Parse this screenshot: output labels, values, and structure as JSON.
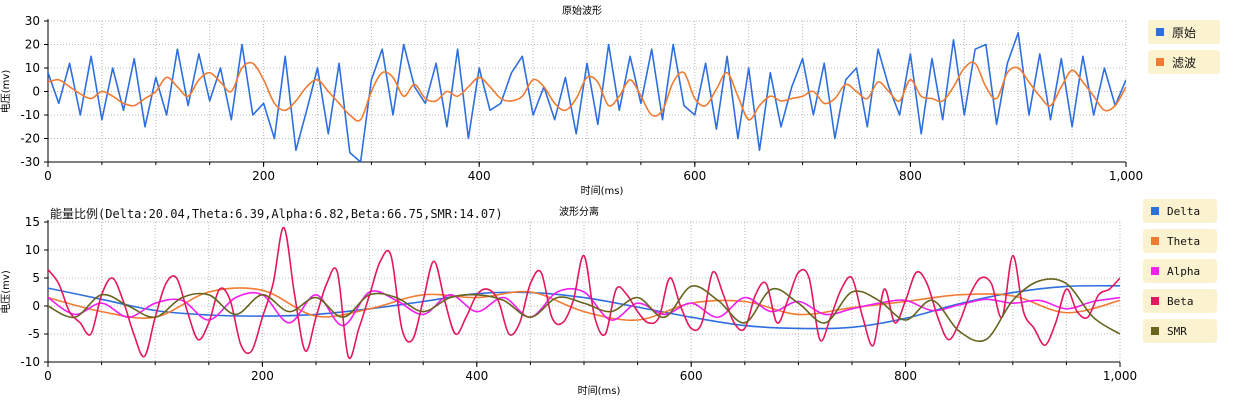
{
  "colors": {
    "blue": "#2e6fe0",
    "orange": "#f07c33",
    "magenta": "#f21ef0",
    "crimson": "#e4175f",
    "olive": "#66641e"
  },
  "energy_text": "能量比例(Delta:20.04,Theta:6.39,Alpha:6.82,Beta:66.75,SMR:14.07)",
  "chart_data": [
    {
      "type": "line",
      "title": "原始波形",
      "xlabel": "时间(ms)",
      "ylabel": "电压(mv)",
      "xlim": [
        0,
        1000
      ],
      "ylim": [
        -30,
        30
      ],
      "x_ticks": [
        "0",
        "200",
        "400",
        "600",
        "800",
        "1,000"
      ],
      "y_ticks": [
        "30",
        "20",
        "10",
        "0",
        "-10",
        "-20",
        "-30"
      ],
      "grid": true,
      "legend": "right",
      "series": [
        {
          "name": "原始",
          "color": "blue",
          "x": [
            0,
            10,
            20,
            30,
            40,
            50,
            60,
            70,
            80,
            90,
            100,
            110,
            120,
            130,
            140,
            150,
            160,
            170,
            180,
            190,
            200,
            210,
            220,
            230,
            240,
            250,
            260,
            270,
            280,
            290,
            300,
            310,
            320,
            330,
            340,
            350,
            360,
            370,
            380,
            390,
            400,
            410,
            420,
            430,
            440,
            450,
            460,
            470,
            480,
            490,
            500,
            510,
            520,
            530,
            540,
            550,
            560,
            570,
            580,
            590,
            600,
            610,
            620,
            630,
            640,
            650,
            660,
            670,
            680,
            690,
            700,
            710,
            720,
            730,
            740,
            750,
            760,
            770,
            780,
            790,
            800,
            810,
            820,
            830,
            840,
            850,
            860,
            870,
            880,
            890,
            900,
            910,
            920,
            930,
            940,
            950,
            960,
            970,
            980,
            990,
            1000
          ],
          "values": [
            8,
            -5,
            12,
            -10,
            15,
            -12,
            10,
            -8,
            14,
            -15,
            6,
            -10,
            18,
            -6,
            16,
            -4,
            10,
            -12,
            20,
            -10,
            -5,
            -20,
            15,
            -25,
            -8,
            10,
            -18,
            12,
            -26,
            -30,
            5,
            18,
            -10,
            20,
            2,
            -5,
            12,
            -15,
            18,
            -20,
            10,
            -8,
            -5,
            8,
            15,
            -10,
            2,
            -12,
            6,
            -18,
            12,
            -14,
            20,
            -8,
            15,
            -5,
            18,
            -12,
            20,
            -6,
            -10,
            12,
            -16,
            15,
            -20,
            10,
            -25,
            8,
            -15,
            2,
            14,
            -10,
            12,
            -20,
            5,
            10,
            -15,
            18,
            2,
            -10,
            16,
            -18,
            14,
            -12,
            22,
            -10,
            18,
            20,
            -14,
            12,
            25,
            -10,
            16,
            -12,
            14,
            -15,
            15,
            -10,
            10,
            -6,
            5
          ]
        },
        {
          "name": "滤波",
          "color": "orange",
          "x": [
            0,
            10,
            20,
            30,
            40,
            50,
            60,
            70,
            80,
            90,
            100,
            110,
            120,
            130,
            140,
            150,
            160,
            170,
            180,
            190,
            200,
            210,
            220,
            230,
            240,
            250,
            260,
            270,
            280,
            290,
            300,
            310,
            320,
            330,
            340,
            350,
            360,
            370,
            380,
            390,
            400,
            410,
            420,
            430,
            440,
            450,
            460,
            470,
            480,
            490,
            500,
            510,
            520,
            530,
            540,
            550,
            560,
            570,
            580,
            590,
            600,
            610,
            620,
            630,
            640,
            650,
            660,
            670,
            680,
            690,
            700,
            710,
            720,
            730,
            740,
            750,
            760,
            770,
            780,
            790,
            800,
            810,
            820,
            830,
            840,
            850,
            860,
            870,
            880,
            890,
            900,
            910,
            920,
            930,
            940,
            950,
            960,
            970,
            980,
            990,
            1000
          ],
          "values": [
            4,
            5,
            2,
            -1,
            -3,
            0,
            -2,
            -5,
            -6,
            -3,
            0,
            6,
            2,
            -2,
            5,
            8,
            4,
            0,
            10,
            12,
            5,
            -5,
            -8,
            -4,
            2,
            5,
            0,
            -5,
            -10,
            -12,
            0,
            8,
            6,
            -2,
            3,
            -3,
            -4,
            0,
            -2,
            2,
            6,
            2,
            -3,
            -4,
            -2,
            5,
            2,
            -5,
            -8,
            -3,
            6,
            4,
            -6,
            -2,
            5,
            -2,
            -10,
            -8,
            4,
            8,
            -3,
            -6,
            1,
            8,
            -2,
            -12,
            -6,
            -2,
            -4,
            -3,
            -2,
            0,
            -5,
            -3,
            3,
            0,
            -3,
            4,
            0,
            -4,
            5,
            -2,
            -3,
            -4,
            2,
            10,
            12,
            2,
            -3,
            8,
            10,
            4,
            -2,
            -6,
            2,
            9,
            4,
            -2,
            -8,
            -6,
            2
          ]
        }
      ]
    },
    {
      "type": "line",
      "title": "波形分离",
      "xlabel": "时间(ms)",
      "ylabel": "电压(mv)",
      "xlim": [
        0,
        1000
      ],
      "ylim": [
        -10,
        15
      ],
      "x_ticks": [
        "0",
        "200",
        "400",
        "600",
        "800",
        "1,000"
      ],
      "y_ticks": [
        "15",
        "10",
        "5",
        "0",
        "-5",
        "-10"
      ],
      "grid": true,
      "legend": "right",
      "series": [
        {
          "name": "Delta",
          "color": "blue",
          "x": [
            0,
            50,
            100,
            150,
            200,
            250,
            300,
            350,
            400,
            450,
            500,
            550,
            600,
            650,
            700,
            750,
            800,
            850,
            900,
            950,
            1000
          ],
          "values": [
            3.2,
            1.2,
            -0.8,
            -1.6,
            -1.8,
            -1.5,
            -0.5,
            0.8,
            2.2,
            2.4,
            1.5,
            -0.2,
            -2.0,
            -3.5,
            -4.0,
            -3.8,
            -2.2,
            0.4,
            2.4,
            3.5,
            3.6
          ]
        },
        {
          "name": "Theta",
          "color": "orange",
          "x": [
            0,
            50,
            100,
            150,
            200,
            250,
            300,
            350,
            400,
            450,
            500,
            550,
            600,
            650,
            700,
            750,
            800,
            850,
            900,
            950,
            1000
          ],
          "values": [
            1.5,
            -1.0,
            -2.0,
            2.5,
            2.8,
            -1.8,
            -0.5,
            2.0,
            1.5,
            2.5,
            -1.0,
            -2.5,
            0.5,
            0.8,
            -1.5,
            -0.3,
            0.8,
            2.0,
            1.8,
            -1.2,
            1.0
          ]
        },
        {
          "name": "Alpha",
          "color": "magenta",
          "x": [
            0,
            25,
            50,
            75,
            100,
            125,
            150,
            175,
            200,
            225,
            250,
            275,
            300,
            325,
            350,
            375,
            400,
            425,
            450,
            475,
            500,
            525,
            550,
            575,
            600,
            625,
            650,
            675,
            700,
            725,
            750,
            775,
            800,
            825,
            850,
            875,
            900,
            925,
            950,
            975,
            1000
          ],
          "values": [
            1.5,
            -1.5,
            0.5,
            -2.0,
            0.5,
            1.0,
            -2.5,
            1.5,
            2.0,
            -3.0,
            2.0,
            -3.5,
            2.5,
            1.0,
            -1.5,
            2.0,
            -1.0,
            1.5,
            -2.0,
            2.5,
            2.5,
            -2.5,
            0.5,
            -1.5,
            0.5,
            -2.0,
            1.5,
            -1.0,
            0.8,
            -1.5,
            -0.5,
            0.5,
            1.0,
            -0.8,
            0.2,
            1.2,
            0.5,
            1.0,
            -0.5,
            0.8,
            1.5
          ]
        },
        {
          "name": "Beta",
          "color": "crimson",
          "x": [
            0,
            10,
            20,
            30,
            40,
            50,
            60,
            70,
            80,
            90,
            100,
            110,
            120,
            130,
            140,
            150,
            160,
            170,
            180,
            190,
            200,
            210,
            220,
            230,
            240,
            250,
            260,
            270,
            280,
            290,
            300,
            310,
            320,
            330,
            340,
            350,
            360,
            370,
            380,
            390,
            400,
            410,
            420,
            430,
            440,
            450,
            460,
            470,
            480,
            490,
            500,
            510,
            520,
            530,
            540,
            550,
            560,
            570,
            580,
            590,
            600,
            610,
            620,
            630,
            640,
            650,
            660,
            670,
            680,
            690,
            700,
            710,
            720,
            730,
            740,
            750,
            760,
            770,
            780,
            790,
            800,
            810,
            820,
            830,
            840,
            850,
            860,
            870,
            880,
            890,
            900,
            910,
            920,
            930,
            940,
            950,
            960,
            970,
            980,
            990,
            1000
          ],
          "values": [
            6.5,
            4,
            -1,
            -3,
            -5,
            2,
            5,
            1,
            -5,
            -9,
            -2,
            4,
            5,
            -1,
            -6,
            -3,
            3,
            1,
            -7,
            -8,
            -2,
            4,
            14,
            2,
            -8,
            -2,
            4,
            6,
            -9,
            -4,
            2,
            8,
            9,
            -4,
            -6,
            1,
            8,
            1,
            -5,
            -2,
            2,
            3,
            1,
            -5,
            -3,
            4,
            6,
            -2,
            -3,
            1,
            9,
            -2,
            -5,
            3,
            2,
            -1,
            -3,
            -2,
            5,
            0,
            -4,
            -3,
            6,
            2,
            -3,
            -4,
            2,
            4,
            -3,
            1,
            6,
            5,
            -6,
            -2,
            3,
            5,
            -2,
            -7,
            3,
            -3,
            1,
            6,
            4,
            -2,
            -6,
            -3,
            2,
            5,
            4,
            -2,
            9,
            -1,
            -4,
            -7,
            -3,
            3,
            -1,
            -2,
            2,
            3,
            5
          ]
        },
        {
          "name": "SMR",
          "color": "olive",
          "x": [
            0,
            25,
            50,
            75,
            100,
            125,
            150,
            175,
            200,
            225,
            250,
            275,
            300,
            325,
            350,
            375,
            400,
            425,
            450,
            475,
            500,
            525,
            550,
            575,
            600,
            625,
            650,
            675,
            700,
            725,
            750,
            775,
            800,
            825,
            850,
            875,
            900,
            925,
            950,
            975,
            1000
          ],
          "values": [
            0,
            -2,
            2,
            0,
            -2,
            1.5,
            2,
            -1.5,
            2,
            -1,
            1.5,
            -2,
            2,
            1.5,
            -1,
            1.5,
            2,
            1,
            -2,
            1.5,
            0.5,
            -1,
            1.5,
            -2,
            3.5,
            1,
            -3,
            3,
            0.5,
            -3,
            2.5,
            1,
            -2.5,
            1,
            -4.5,
            -6,
            1,
            4.5,
            4,
            -2,
            -5
          ]
        }
      ]
    }
  ]
}
